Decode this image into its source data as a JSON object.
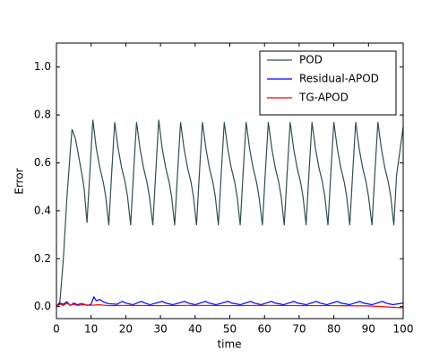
{
  "chart_data": {
    "type": "line",
    "xlabel": "time",
    "ylabel": "Error",
    "xlim": [
      0,
      100
    ],
    "ylim": [
      -0.05,
      1.1
    ],
    "xticks": [
      0,
      10,
      20,
      30,
      40,
      50,
      60,
      70,
      80,
      90,
      100
    ],
    "yticks": [
      {
        "value": 0,
        "label": "0.0"
      },
      0.2,
      0.4,
      0.6,
      0.8,
      {
        "value": 1,
        "label": "1.0"
      }
    ],
    "legend": "upper right",
    "grid": false,
    "series": [
      {
        "name": "POD",
        "color": "#2f4f4f",
        "x": [
          0,
          1,
          2,
          3,
          4,
          4.5,
          5.5,
          6.5,
          7.5,
          8,
          8.8,
          9.6,
          10.5,
          11.5,
          12.5,
          13.5,
          14.2,
          15.1,
          15.9,
          16.8,
          17.8,
          18.8,
          19.8,
          20.5,
          21.4,
          22.2,
          23.1,
          24.1,
          25.1,
          26.1,
          26.8,
          27.8,
          28.6,
          29.5,
          30.5,
          31.5,
          32.5,
          33.2,
          34.1,
          34.9,
          35.8,
          36.8,
          37.8,
          38.8,
          39.5,
          40.4,
          41.2,
          42.1,
          43.1,
          44.1,
          45.1,
          45.8,
          46.7,
          47.5,
          48.4,
          49.4,
          50.4,
          51.4,
          52.1,
          53,
          53.8,
          54.7,
          55.7,
          56.7,
          57.7,
          58.4,
          59.4,
          60.2,
          61.1,
          62.1,
          63.1,
          64.1,
          64.8,
          65.7,
          66.5,
          67.4,
          68.4,
          69.4,
          70.4,
          71.1,
          72,
          72.8,
          73.7,
          74.7,
          75.7,
          76.7,
          77.4,
          78.3,
          79.1,
          80,
          81,
          82,
          83,
          83.7,
          84.6,
          85.4,
          86.3,
          87.3,
          88.3,
          89.3,
          90,
          91,
          91.8,
          92.7,
          93.7,
          94.7,
          95.7,
          96.4,
          97.3,
          98.1,
          100
        ],
        "values": [
          0,
          0.02,
          0.2,
          0.45,
          0.65,
          0.74,
          0.7,
          0.62,
          0.54,
          0.49,
          0.35,
          0.55,
          0.78,
          0.66,
          0.58,
          0.52,
          0.46,
          0.34,
          0.55,
          0.77,
          0.66,
          0.58,
          0.52,
          0.46,
          0.34,
          0.55,
          0.77,
          0.66,
          0.58,
          0.52,
          0.46,
          0.34,
          0.55,
          0.78,
          0.66,
          0.58,
          0.52,
          0.46,
          0.34,
          0.55,
          0.77,
          0.66,
          0.58,
          0.52,
          0.46,
          0.34,
          0.55,
          0.77,
          0.66,
          0.58,
          0.52,
          0.46,
          0.34,
          0.55,
          0.77,
          0.66,
          0.58,
          0.52,
          0.46,
          0.34,
          0.55,
          0.77,
          0.66,
          0.58,
          0.52,
          0.46,
          0.34,
          0.55,
          0.77,
          0.66,
          0.58,
          0.52,
          0.46,
          0.34,
          0.55,
          0.77,
          0.66,
          0.58,
          0.52,
          0.46,
          0.34,
          0.55,
          0.77,
          0.66,
          0.58,
          0.52,
          0.46,
          0.34,
          0.55,
          0.77,
          0.66,
          0.58,
          0.52,
          0.46,
          0.34,
          0.55,
          0.77,
          0.66,
          0.58,
          0.52,
          0.46,
          0.34,
          0.55,
          0.77,
          0.66,
          0.58,
          0.52,
          0.46,
          0.34,
          0.55,
          0.75
        ]
      },
      {
        "name": "Residual-APOD",
        "color": "#0000ff",
        "x": [
          0,
          1,
          2,
          3,
          4,
          5,
          6,
          7,
          8,
          9,
          10,
          10.8,
          11.5,
          12.5,
          13.5,
          15,
          17.5,
          19,
          20,
          22,
          24.5,
          25.5,
          27,
          30.5,
          31.5,
          33.5,
          37,
          38,
          40,
          43,
          44,
          46,
          49.5,
          50.5,
          53,
          56,
          57,
          59,
          62,
          63,
          65.5,
          68.5,
          69.5,
          72,
          75,
          76,
          78,
          81,
          82,
          84.5,
          87.5,
          88.5,
          91,
          94,
          95,
          97,
          100
        ],
        "values": [
          0,
          0.015,
          0.01,
          0.02,
          0.005,
          0.015,
          0.008,
          0.012,
          0.01,
          0.005,
          0.01,
          0.04,
          0.025,
          0.03,
          0.02,
          0.012,
          0.01,
          0.022,
          0.015,
          0.008,
          0.022,
          0.015,
          0.008,
          0.022,
          0.015,
          0.008,
          0.022,
          0.015,
          0.008,
          0.022,
          0.015,
          0.008,
          0.022,
          0.015,
          0.008,
          0.022,
          0.015,
          0.008,
          0.022,
          0.015,
          0.008,
          0.022,
          0.015,
          0.008,
          0.022,
          0.015,
          0.008,
          0.022,
          0.015,
          0.008,
          0.022,
          0.015,
          0.008,
          0.022,
          0.015,
          0.008,
          0.015
        ]
      },
      {
        "name": "TG-APOD",
        "color": "#ff0000",
        "x": [
          0,
          1,
          2,
          3,
          4,
          5,
          6,
          8,
          10,
          12,
          15,
          20,
          30,
          40,
          50,
          60,
          70,
          80,
          90,
          100
        ],
        "values": [
          0,
          0.01,
          0.005,
          0.015,
          0.005,
          0.01,
          0.005,
          0.008,
          0.005,
          0.008,
          0.004,
          0.005,
          0.004,
          0.005,
          0.004,
          0.005,
          0.004,
          0.004,
          0.003,
          -0.005
        ]
      }
    ]
  }
}
